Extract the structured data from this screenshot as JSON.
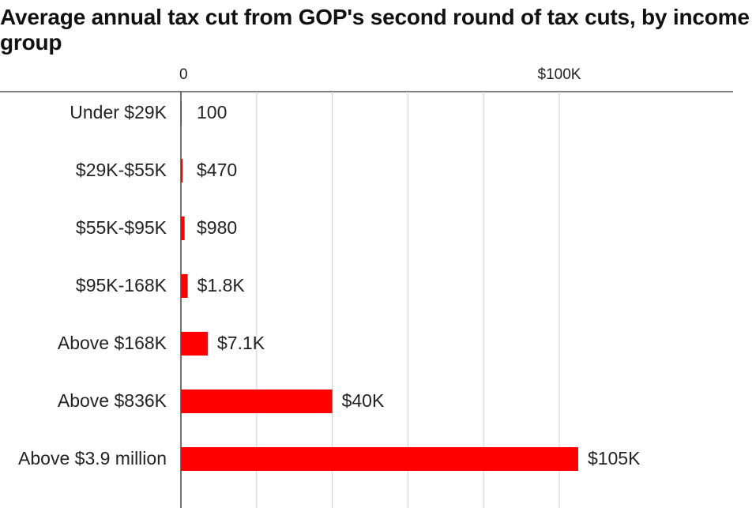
{
  "chart_data": {
    "type": "bar",
    "orientation": "horizontal",
    "title": "Average annual tax cut from GOP's second round of tax cuts, by income group",
    "xlabel": "",
    "ylabel": "",
    "xlim": [
      0,
      115000
    ],
    "x_ticks": [
      {
        "value": 0,
        "label": "0"
      },
      {
        "value": 100000,
        "label": "$100K"
      }
    ],
    "gridlines": [
      0,
      20000,
      40000,
      60000,
      80000,
      100000
    ],
    "grid": true,
    "bar_color": "#ff0000",
    "categories": [
      "Under $29K",
      "$29K-$55K",
      "$55K-$95K",
      "$95K-168K",
      "Above $168K",
      "Above $836K",
      "Above $3.9 million"
    ],
    "values": [
      100,
      470,
      980,
      1800,
      7100,
      40000,
      105000
    ],
    "value_labels": [
      "100",
      "$470",
      "$980",
      "$1.8K",
      "$7.1K",
      "$40K",
      "$105K"
    ]
  }
}
